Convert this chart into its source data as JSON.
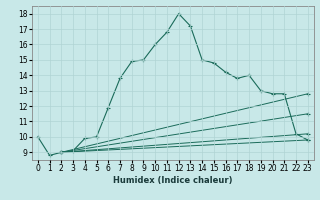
{
  "xlabel": "Humidex (Indice chaleur)",
  "bg_color": "#c8e8e8",
  "line_color": "#1a6b5a",
  "grid_color": "#b0d4d4",
  "xlim": [
    -0.5,
    23.5
  ],
  "ylim": [
    8.5,
    18.5
  ],
  "xticks": [
    0,
    1,
    2,
    3,
    4,
    5,
    6,
    7,
    8,
    9,
    10,
    11,
    12,
    13,
    14,
    15,
    16,
    17,
    18,
    19,
    20,
    21,
    22,
    23
  ],
  "yticks": [
    9,
    10,
    11,
    12,
    13,
    14,
    15,
    16,
    17,
    18
  ],
  "main_curve_x": [
    0,
    1,
    2,
    3,
    4,
    5,
    6,
    7,
    8,
    9,
    10,
    11,
    12,
    13,
    14,
    15,
    16,
    17,
    18,
    19,
    20,
    21,
    22,
    23
  ],
  "main_curve_y": [
    10.0,
    8.8,
    9.0,
    9.1,
    9.9,
    10.0,
    11.9,
    13.8,
    14.9,
    15.0,
    16.0,
    16.8,
    18.0,
    17.2,
    15.0,
    14.8,
    14.2,
    13.8,
    14.0,
    13.0,
    12.8,
    12.8,
    10.2,
    9.8
  ],
  "fan_lines": [
    {
      "x": [
        2,
        23
      ],
      "y": [
        9.0,
        12.8
      ]
    },
    {
      "x": [
        2,
        23
      ],
      "y": [
        9.0,
        11.5
      ]
    },
    {
      "x": [
        2,
        23
      ],
      "y": [
        9.0,
        10.2
      ]
    },
    {
      "x": [
        2,
        23
      ],
      "y": [
        9.0,
        9.8
      ]
    }
  ]
}
